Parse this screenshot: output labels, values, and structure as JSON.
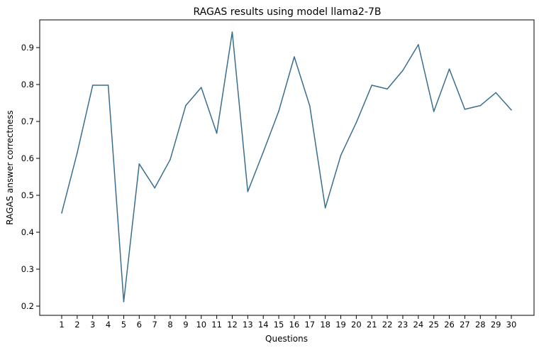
{
  "chart_data": {
    "type": "line",
    "title": "RAGAS results using model llama2-7B",
    "xlabel": "Questions",
    "ylabel": "RAGAS answer correctness",
    "categories": [
      "1",
      "2",
      "3",
      "4",
      "5",
      "6",
      "7",
      "8",
      "9",
      "10",
      "11",
      "12",
      "13",
      "14",
      "15",
      "16",
      "17",
      "18",
      "19",
      "20",
      "21",
      "22",
      "23",
      "24",
      "25",
      "26",
      "27",
      "28",
      "29",
      "30"
    ],
    "series": [
      {
        "values": [
          0.452,
          0.615,
          0.798,
          0.798,
          0.212,
          0.585,
          0.52,
          0.597,
          0.743,
          0.792,
          0.668,
          0.942,
          0.51,
          0.617,
          0.728,
          0.875,
          0.742,
          0.466,
          0.608,
          0.697,
          0.798,
          0.788,
          0.838,
          0.908,
          0.727,
          0.842,
          0.733,
          0.743,
          0.778,
          0.731
        ],
        "color": "#3a6e8f"
      }
    ],
    "yticks": [
      "0.2",
      "0.3",
      "0.4",
      "0.5",
      "0.6",
      "0.7",
      "0.8",
      "0.9"
    ],
    "ylim": [
      0.175,
      0.975
    ],
    "grid": false,
    "legend": "none"
  }
}
